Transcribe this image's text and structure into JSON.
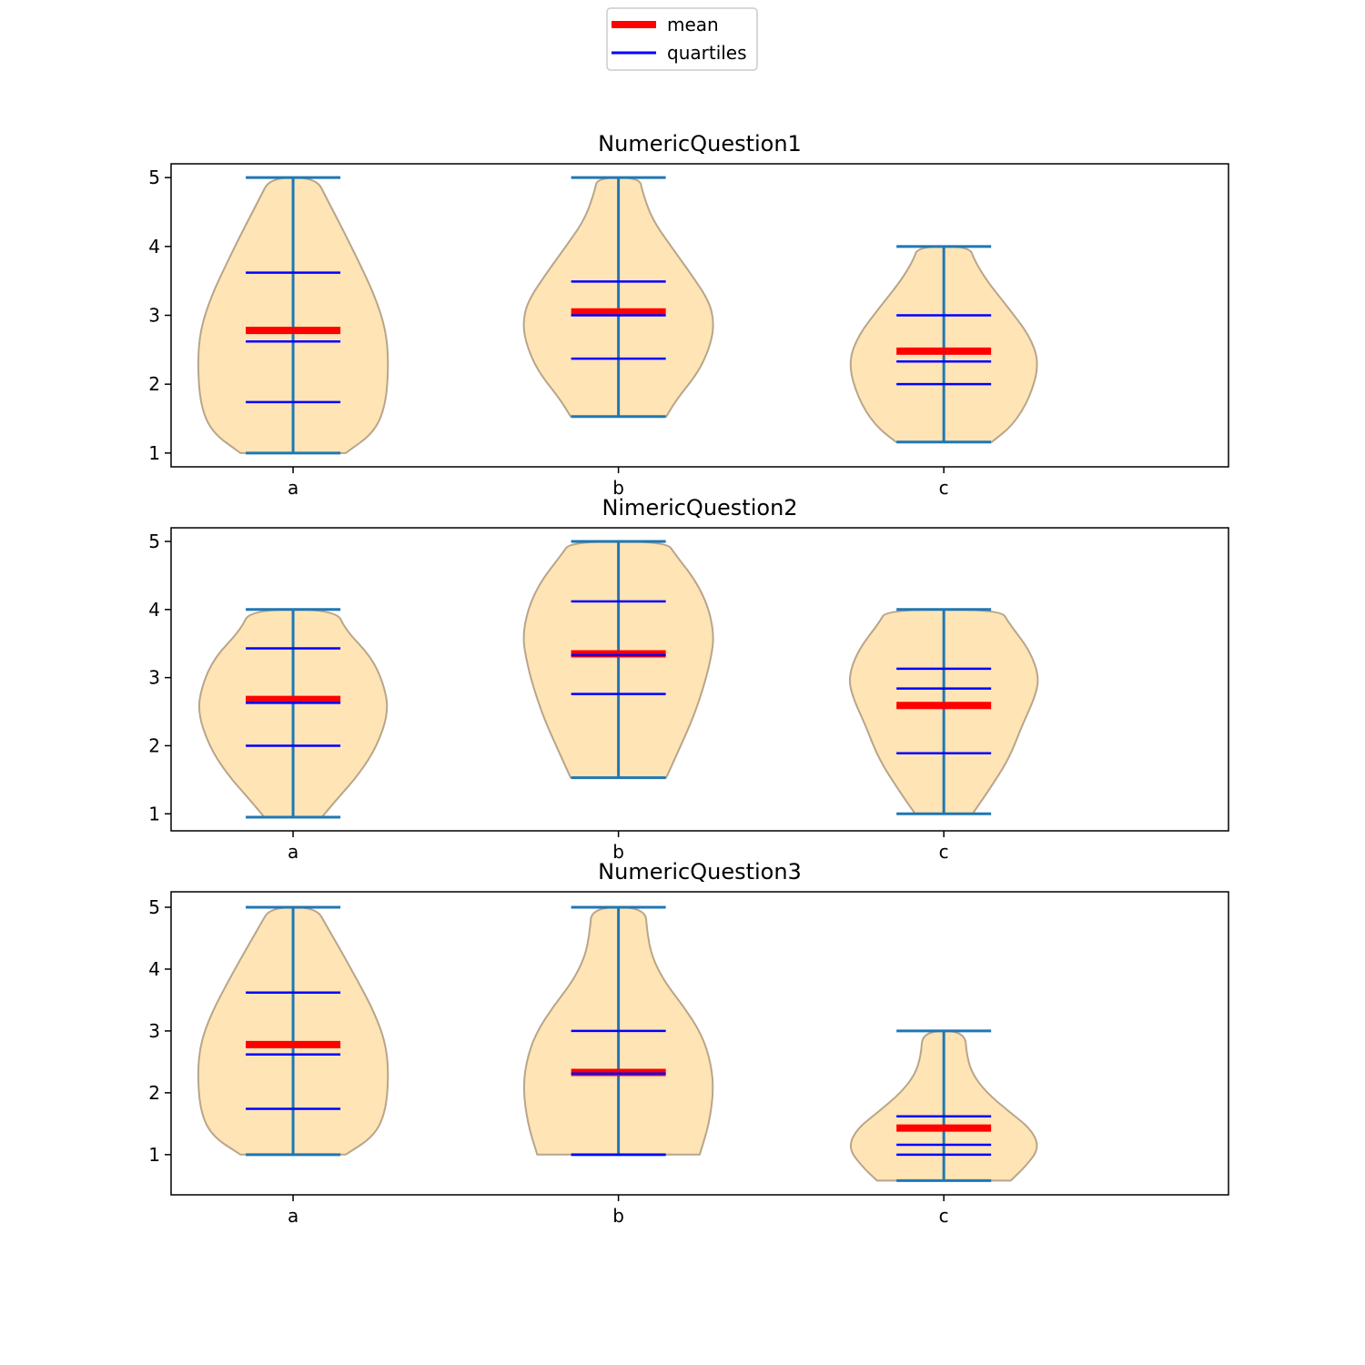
{
  "legend": {
    "entries": [
      {
        "label": "mean",
        "color": "#ff0000"
      },
      {
        "label": "quartiles",
        "color": "#0000ff"
      }
    ],
    "placement": "top-center"
  },
  "colors": {
    "violin_fill": "#ffe4b5",
    "violin_edge": "#b8a58a",
    "whisker": "#1f77b4",
    "mean": "#ff0000",
    "quartiles": "#0000ff"
  },
  "chart_data": [
    {
      "type": "violin",
      "title": "NumericQuestion1",
      "categories": [
        "a",
        "b",
        "c"
      ],
      "yticks": [
        1,
        2,
        3,
        4,
        5
      ],
      "ylim": [
        0.8,
        5.2
      ],
      "violins": [
        {
          "category": "a",
          "min": 1.0,
          "max": 5.0,
          "mean": 2.78,
          "quartiles": [
            1.74,
            2.62,
            3.62
          ],
          "density": [
            [
              1.0,
              0.55
            ],
            [
              1.3,
              0.85
            ],
            [
              1.7,
              0.97
            ],
            [
              2.3,
              1.0
            ],
            [
              2.8,
              0.97
            ],
            [
              3.3,
              0.85
            ],
            [
              3.8,
              0.68
            ],
            [
              4.3,
              0.5
            ],
            [
              4.7,
              0.35
            ],
            [
              5.0,
              0.24
            ]
          ]
        },
        {
          "category": "b",
          "min": 1.53,
          "max": 5.0,
          "mean": 3.05,
          "quartiles": [
            2.37,
            3.0,
            3.49
          ],
          "density": [
            [
              1.53,
              0.5
            ],
            [
              1.8,
              0.62
            ],
            [
              2.2,
              0.85
            ],
            [
              2.6,
              0.97
            ],
            [
              2.9,
              1.0
            ],
            [
              3.2,
              0.95
            ],
            [
              3.6,
              0.76
            ],
            [
              4.0,
              0.55
            ],
            [
              4.4,
              0.35
            ],
            [
              4.8,
              0.25
            ],
            [
              5.0,
              0.22
            ]
          ]
        },
        {
          "category": "c",
          "min": 1.16,
          "max": 4.0,
          "mean": 2.48,
          "quartiles": [
            2.0,
            2.33,
            3.0
          ],
          "density": [
            [
              1.16,
              0.5
            ],
            [
              1.4,
              0.72
            ],
            [
              1.8,
              0.9
            ],
            [
              2.3,
              1.0
            ],
            [
              2.7,
              0.9
            ],
            [
              3.1,
              0.68
            ],
            [
              3.5,
              0.45
            ],
            [
              3.8,
              0.32
            ],
            [
              4.0,
              0.27
            ]
          ]
        }
      ]
    },
    {
      "type": "violin",
      "title": "NimericQuestion2",
      "categories": [
        "a",
        "b",
        "c"
      ],
      "yticks": [
        1,
        2,
        3,
        4,
        5
      ],
      "ylim": [
        0.75,
        5.2
      ],
      "violins": [
        {
          "category": "a",
          "min": 0.95,
          "max": 4.0,
          "mean": 2.68,
          "quartiles": [
            2.0,
            2.63,
            3.43
          ],
          "density": [
            [
              0.95,
              0.3
            ],
            [
              1.2,
              0.45
            ],
            [
              1.6,
              0.7
            ],
            [
              2.0,
              0.88
            ],
            [
              2.5,
              1.0
            ],
            [
              2.9,
              0.95
            ],
            [
              3.3,
              0.82
            ],
            [
              3.7,
              0.55
            ],
            [
              4.0,
              0.45
            ]
          ]
        },
        {
          "category": "b",
          "min": 1.53,
          "max": 5.0,
          "mean": 3.35,
          "quartiles": [
            2.76,
            3.33,
            4.12
          ],
          "density": [
            [
              1.53,
              0.5
            ],
            [
              1.9,
              0.62
            ],
            [
              2.4,
              0.78
            ],
            [
              2.9,
              0.9
            ],
            [
              3.3,
              0.97
            ],
            [
              3.6,
              1.0
            ],
            [
              4.0,
              0.95
            ],
            [
              4.4,
              0.82
            ],
            [
              4.8,
              0.6
            ],
            [
              5.0,
              0.5
            ]
          ]
        },
        {
          "category": "c",
          "min": 1.0,
          "max": 4.0,
          "mean": 2.59,
          "quartiles": [
            1.89,
            2.84,
            3.13
          ],
          "density": [
            [
              1.0,
              0.3
            ],
            [
              1.3,
              0.45
            ],
            [
              1.8,
              0.68
            ],
            [
              2.3,
              0.82
            ],
            [
              2.7,
              0.95
            ],
            [
              3.0,
              1.0
            ],
            [
              3.4,
              0.9
            ],
            [
              3.8,
              0.68
            ],
            [
              4.0,
              0.6
            ]
          ]
        }
      ]
    },
    {
      "type": "violin",
      "title": "NumericQuestion3",
      "categories": [
        "a",
        "b",
        "c"
      ],
      "yticks": [
        1,
        2,
        3,
        4,
        5
      ],
      "ylim": [
        0.35,
        5.25
      ],
      "violins": [
        {
          "category": "a",
          "min": 1.0,
          "max": 5.0,
          "mean": 2.78,
          "quartiles": [
            1.74,
            2.62,
            3.62
          ],
          "density": [
            [
              1.0,
              0.55
            ],
            [
              1.3,
              0.85
            ],
            [
              1.7,
              0.97
            ],
            [
              2.3,
              1.0
            ],
            [
              2.8,
              0.97
            ],
            [
              3.3,
              0.85
            ],
            [
              3.8,
              0.68
            ],
            [
              4.3,
              0.5
            ],
            [
              4.7,
              0.35
            ],
            [
              5.0,
              0.24
            ]
          ]
        },
        {
          "category": "b",
          "min": 1.0,
          "max": 5.0,
          "mean": 2.33,
          "quartiles": [
            1.0,
            2.31,
            3.0
          ],
          "density": [
            [
              1.0,
              0.85
            ],
            [
              1.5,
              0.95
            ],
            [
              2.1,
              1.0
            ],
            [
              2.6,
              0.95
            ],
            [
              3.0,
              0.85
            ],
            [
              3.4,
              0.68
            ],
            [
              3.8,
              0.48
            ],
            [
              4.2,
              0.35
            ],
            [
              4.6,
              0.3
            ],
            [
              5.0,
              0.28
            ]
          ]
        },
        {
          "category": "c",
          "min": 0.58,
          "max": 3.0,
          "mean": 1.43,
          "quartiles": [
            1.0,
            1.16,
            1.62
          ],
          "density": [
            [
              0.58,
              0.7
            ],
            [
              0.8,
              0.85
            ],
            [
              1.1,
              1.0
            ],
            [
              1.4,
              0.92
            ],
            [
              1.7,
              0.68
            ],
            [
              2.0,
              0.45
            ],
            [
              2.3,
              0.3
            ],
            [
              2.6,
              0.24
            ],
            [
              3.0,
              0.22
            ]
          ]
        }
      ]
    }
  ]
}
